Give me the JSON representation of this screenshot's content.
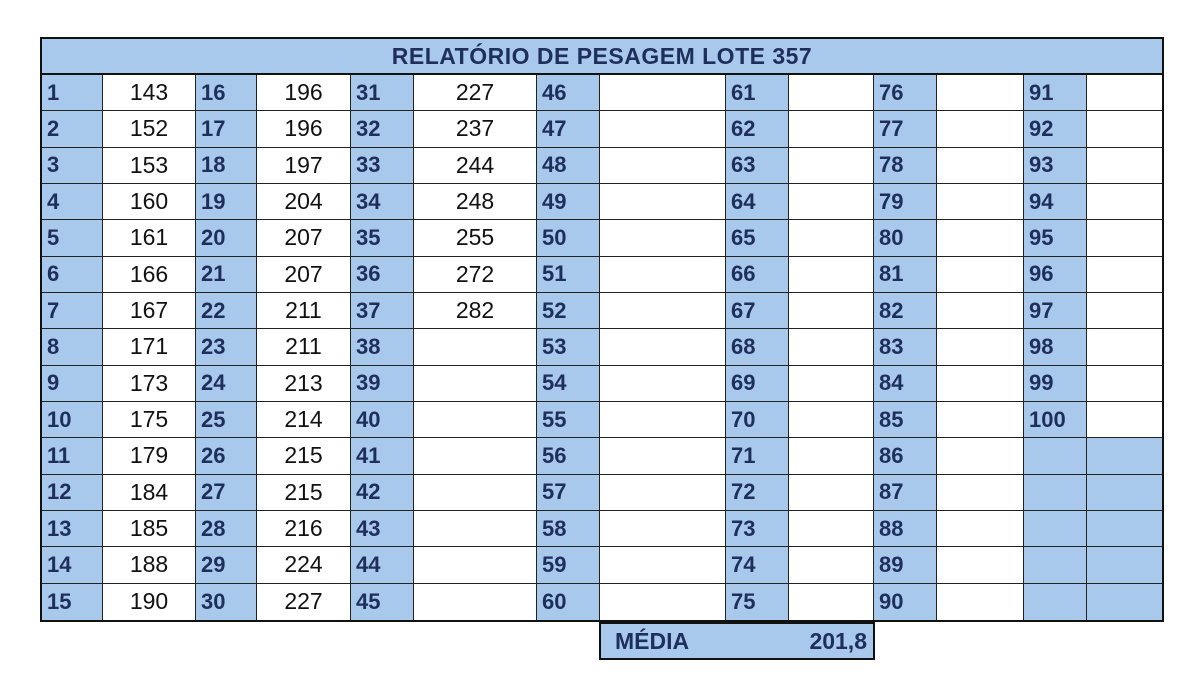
{
  "title": "RELATÓRIO DE PESAGEM LOTE 357",
  "summary": {
    "label": "MÉDIA",
    "value": "201,8"
  },
  "colors": {
    "header_fill": "#a9c9ec",
    "header_text": "#1f2f5c",
    "grid_line": "#222222"
  },
  "columns": [
    {
      "entries": [
        {
          "n": "1",
          "w": "143"
        },
        {
          "n": "2",
          "w": "152"
        },
        {
          "n": "3",
          "w": "153"
        },
        {
          "n": "4",
          "w": "160"
        },
        {
          "n": "5",
          "w": "161"
        },
        {
          "n": "6",
          "w": "166"
        },
        {
          "n": "7",
          "w": "167"
        },
        {
          "n": "8",
          "w": "171"
        },
        {
          "n": "9",
          "w": "173"
        },
        {
          "n": "10",
          "w": "175"
        },
        {
          "n": "11",
          "w": "179"
        },
        {
          "n": "12",
          "w": "184"
        },
        {
          "n": "13",
          "w": "185"
        },
        {
          "n": "14",
          "w": "188"
        },
        {
          "n": "15",
          "w": "190"
        }
      ]
    },
    {
      "entries": [
        {
          "n": "16",
          "w": "196"
        },
        {
          "n": "17",
          "w": "196"
        },
        {
          "n": "18",
          "w": "197"
        },
        {
          "n": "19",
          "w": "204"
        },
        {
          "n": "20",
          "w": "207"
        },
        {
          "n": "21",
          "w": "207"
        },
        {
          "n": "22",
          "w": "211"
        },
        {
          "n": "23",
          "w": "211"
        },
        {
          "n": "24",
          "w": "213"
        },
        {
          "n": "25",
          "w": "214"
        },
        {
          "n": "26",
          "w": "215"
        },
        {
          "n": "27",
          "w": "215"
        },
        {
          "n": "28",
          "w": "216"
        },
        {
          "n": "29",
          "w": "224"
        },
        {
          "n": "30",
          "w": "227"
        }
      ]
    },
    {
      "entries": [
        {
          "n": "31",
          "w": "227"
        },
        {
          "n": "32",
          "w": "237"
        },
        {
          "n": "33",
          "w": "244"
        },
        {
          "n": "34",
          "w": "248"
        },
        {
          "n": "35",
          "w": "255"
        },
        {
          "n": "36",
          "w": "272"
        },
        {
          "n": "37",
          "w": "282"
        },
        {
          "n": "38",
          "w": ""
        },
        {
          "n": "39",
          "w": ""
        },
        {
          "n": "40",
          "w": ""
        },
        {
          "n": "41",
          "w": ""
        },
        {
          "n": "42",
          "w": ""
        },
        {
          "n": "43",
          "w": ""
        },
        {
          "n": "44",
          "w": ""
        },
        {
          "n": "45",
          "w": ""
        }
      ]
    },
    {
      "entries": [
        {
          "n": "46",
          "w": ""
        },
        {
          "n": "47",
          "w": ""
        },
        {
          "n": "48",
          "w": ""
        },
        {
          "n": "49",
          "w": ""
        },
        {
          "n": "50",
          "w": ""
        },
        {
          "n": "51",
          "w": ""
        },
        {
          "n": "52",
          "w": ""
        },
        {
          "n": "53",
          "w": ""
        },
        {
          "n": "54",
          "w": ""
        },
        {
          "n": "55",
          "w": ""
        },
        {
          "n": "56",
          "w": ""
        },
        {
          "n": "57",
          "w": ""
        },
        {
          "n": "58",
          "w": ""
        },
        {
          "n": "59",
          "w": ""
        },
        {
          "n": "60",
          "w": ""
        }
      ]
    },
    {
      "entries": [
        {
          "n": "61",
          "w": ""
        },
        {
          "n": "62",
          "w": ""
        },
        {
          "n": "63",
          "w": ""
        },
        {
          "n": "64",
          "w": ""
        },
        {
          "n": "65",
          "w": ""
        },
        {
          "n": "66",
          "w": ""
        },
        {
          "n": "67",
          "w": ""
        },
        {
          "n": "68",
          "w": ""
        },
        {
          "n": "69",
          "w": ""
        },
        {
          "n": "70",
          "w": ""
        },
        {
          "n": "71",
          "w": ""
        },
        {
          "n": "72",
          "w": ""
        },
        {
          "n": "73",
          "w": ""
        },
        {
          "n": "74",
          "w": ""
        },
        {
          "n": "75",
          "w": ""
        }
      ]
    },
    {
      "entries": [
        {
          "n": "76",
          "w": ""
        },
        {
          "n": "77",
          "w": ""
        },
        {
          "n": "78",
          "w": ""
        },
        {
          "n": "79",
          "w": ""
        },
        {
          "n": "80",
          "w": ""
        },
        {
          "n": "81",
          "w": ""
        },
        {
          "n": "82",
          "w": ""
        },
        {
          "n": "83",
          "w": ""
        },
        {
          "n": "84",
          "w": ""
        },
        {
          "n": "85",
          "w": ""
        },
        {
          "n": "86",
          "w": ""
        },
        {
          "n": "87",
          "w": ""
        },
        {
          "n": "88",
          "w": ""
        },
        {
          "n": "89",
          "w": ""
        },
        {
          "n": "90",
          "w": ""
        }
      ]
    },
    {
      "entries": [
        {
          "n": "91",
          "w": ""
        },
        {
          "n": "92",
          "w": ""
        },
        {
          "n": "93",
          "w": ""
        },
        {
          "n": "94",
          "w": ""
        },
        {
          "n": "95",
          "w": ""
        },
        {
          "n": "96",
          "w": ""
        },
        {
          "n": "97",
          "w": ""
        },
        {
          "n": "98",
          "w": ""
        },
        {
          "n": "99",
          "w": ""
        },
        {
          "n": "100",
          "w": ""
        },
        {
          "n": "",
          "w": ""
        },
        {
          "n": "",
          "w": ""
        },
        {
          "n": "",
          "w": ""
        },
        {
          "n": "",
          "w": ""
        },
        {
          "n": "",
          "w": ""
        }
      ]
    }
  ]
}
